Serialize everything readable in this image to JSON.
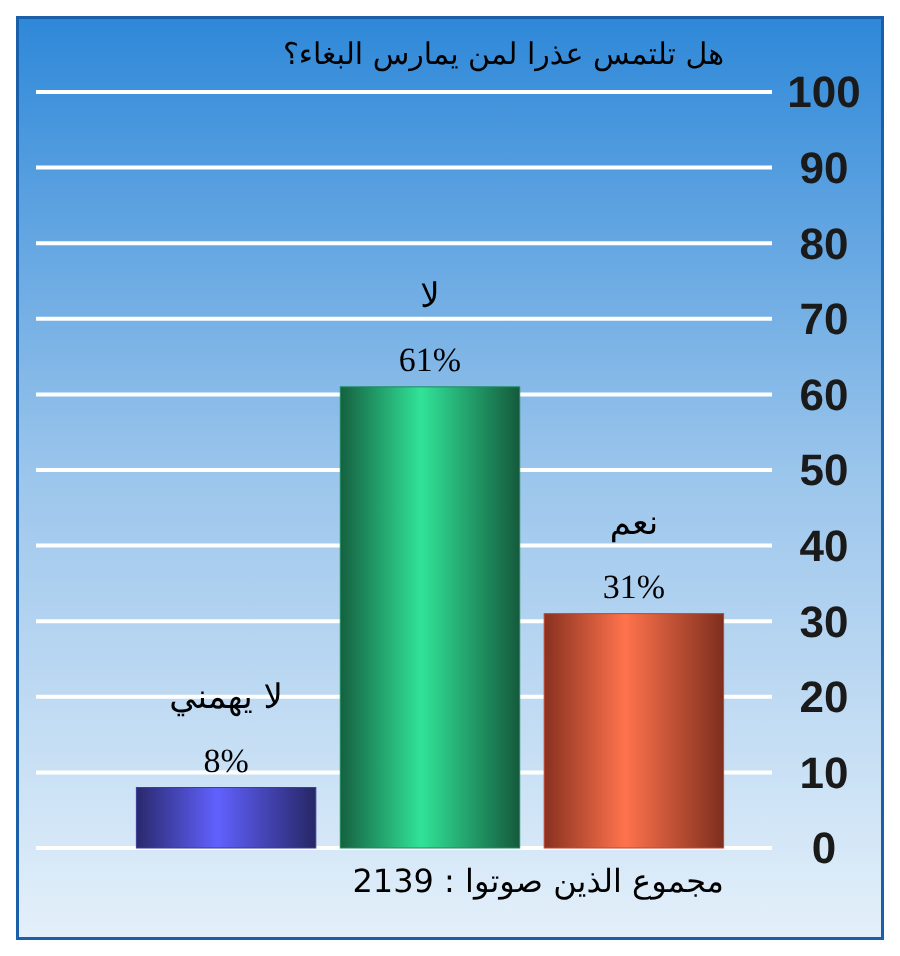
{
  "chart_data": {
    "type": "bar",
    "title": "هل تلتمس عذرا لمن يمارس البغاء؟",
    "categories": [
      "لا يهمني",
      "لا",
      "نعم"
    ],
    "values": [
      8,
      61,
      31
    ],
    "colors": [
      "#3b3b9c",
      "#1e8a5c",
      "#c2462e"
    ],
    "value_labels": [
      "8%",
      "61%",
      "31%"
    ],
    "ylim": [
      0,
      100
    ],
    "yticks": [
      0,
      10,
      20,
      30,
      40,
      50,
      60,
      70,
      80,
      90,
      100
    ],
    "grid": "y",
    "annotations": [
      "مجموع الذين صوتوا : 2139"
    ]
  }
}
